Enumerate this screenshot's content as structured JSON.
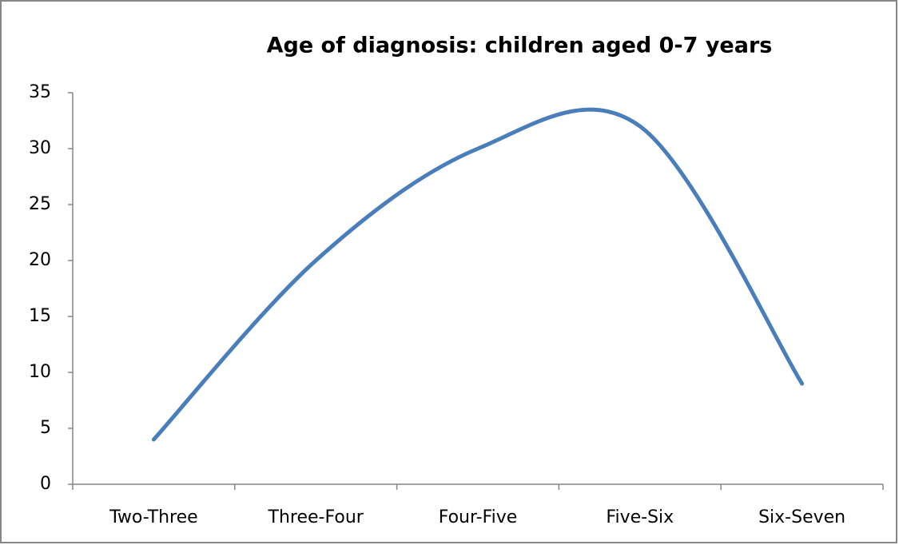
{
  "chart_data": {
    "type": "line",
    "title": "Age of diagnosis: children aged 0-7 years",
    "categories": [
      "Two-Three",
      "Three-Four",
      "Four-Five",
      "Five-Six",
      "Six-Seven"
    ],
    "values": [
      4,
      20,
      30,
      32,
      9
    ],
    "color": "#4a7ebb",
    "smooth": true,
    "ylim": [
      0,
      35
    ],
    "yticks": [
      0,
      5,
      10,
      15,
      20,
      25,
      30,
      35
    ],
    "grid": false
  }
}
